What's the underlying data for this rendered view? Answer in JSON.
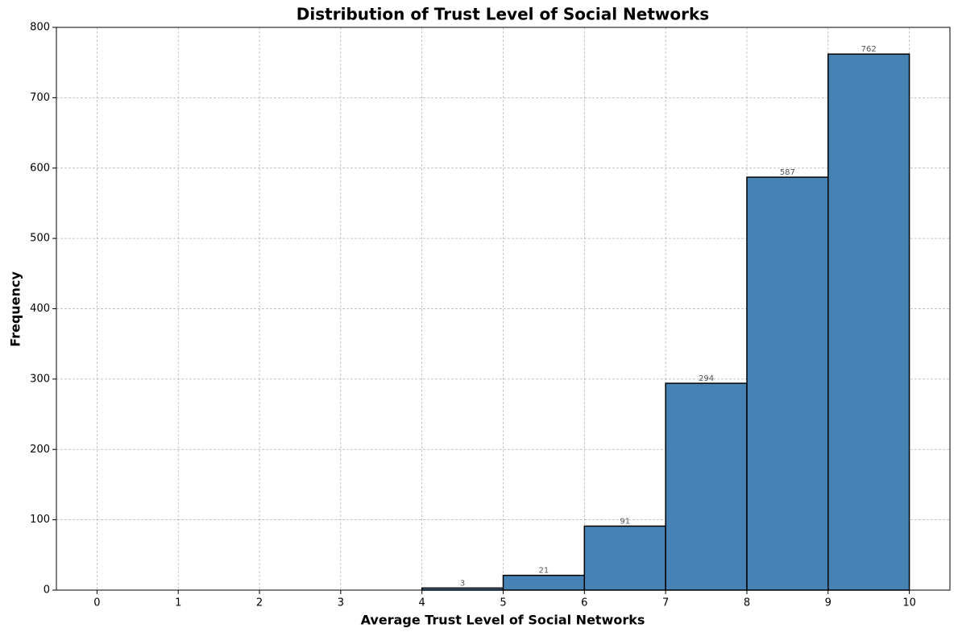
{
  "chart_data": {
    "type": "histogram",
    "title": "Distribution of Trust Level of Social Networks",
    "x_label": "Average Trust Level of Social Networks",
    "y_label": "Frequency",
    "bins": [
      0,
      1,
      2,
      3,
      4,
      5,
      6,
      7,
      8,
      9,
      10
    ],
    "values": [
      0,
      0,
      0,
      0,
      3,
      21,
      91,
      294,
      587,
      762
    ],
    "value_labels": [
      null,
      null,
      null,
      null,
      "3",
      "21",
      "91",
      "294",
      "587",
      "762"
    ],
    "color": "#4682b4",
    "edge_color": "#000000",
    "xlim": [
      -0.5,
      10.5
    ],
    "xticks": [
      0,
      1,
      2,
      3,
      4,
      5,
      6,
      7,
      8,
      9,
      10
    ],
    "ylim": [
      0,
      800
    ],
    "yticks": [
      0,
      100,
      200,
      300,
      400,
      500,
      600,
      700,
      800
    ],
    "grid": true
  }
}
